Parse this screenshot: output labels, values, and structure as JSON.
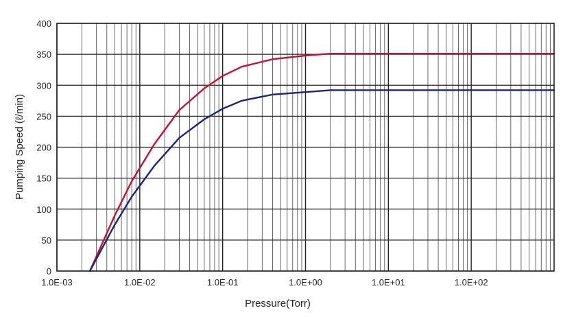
{
  "chart_data": {
    "type": "line",
    "title": "",
    "xlabel": "Pressure(Torr)",
    "ylabel": "Pumping Speed (ℓ/min)",
    "xscale": "log",
    "xlim": [
      0.001,
      1000
    ],
    "ylim": [
      0,
      400
    ],
    "x_ticks": [
      {
        "value": 0.001,
        "label": "1.0E-03"
      },
      {
        "value": 0.01,
        "label": "1.0E-02"
      },
      {
        "value": 0.1,
        "label": "1.0E-01"
      },
      {
        "value": 1,
        "label": "1.0E+00"
      },
      {
        "value": 10,
        "label": "1.0E+01"
      },
      {
        "value": 100,
        "label": "1.0E+02"
      }
    ],
    "y_ticks": [
      0,
      50,
      100,
      150,
      200,
      250,
      300,
      350,
      400
    ],
    "grid": true,
    "legend": "none",
    "series": [
      {
        "color": "#c8102e",
        "points": [
          [
            0.0025,
            0
          ],
          [
            0.005,
            90
          ],
          [
            0.008,
            145
          ],
          [
            0.015,
            205
          ],
          [
            0.03,
            260
          ],
          [
            0.06,
            295
          ],
          [
            0.1,
            315
          ],
          [
            0.17,
            330
          ],
          [
            0.4,
            342
          ],
          [
            1.0,
            348
          ],
          [
            2.0,
            351
          ],
          [
            10,
            351
          ],
          [
            100,
            351
          ],
          [
            1000,
            351
          ]
        ]
      },
      {
        "color": "#1a237e",
        "points": [
          [
            0.0025,
            0
          ],
          [
            0.005,
            75
          ],
          [
            0.008,
            120
          ],
          [
            0.015,
            170
          ],
          [
            0.03,
            215
          ],
          [
            0.06,
            245
          ],
          [
            0.1,
            262
          ],
          [
            0.17,
            275
          ],
          [
            0.4,
            285
          ],
          [
            1.0,
            289
          ],
          [
            2.0,
            292
          ],
          [
            10,
            292
          ],
          [
            100,
            292
          ],
          [
            1000,
            292
          ]
        ]
      }
    ]
  }
}
